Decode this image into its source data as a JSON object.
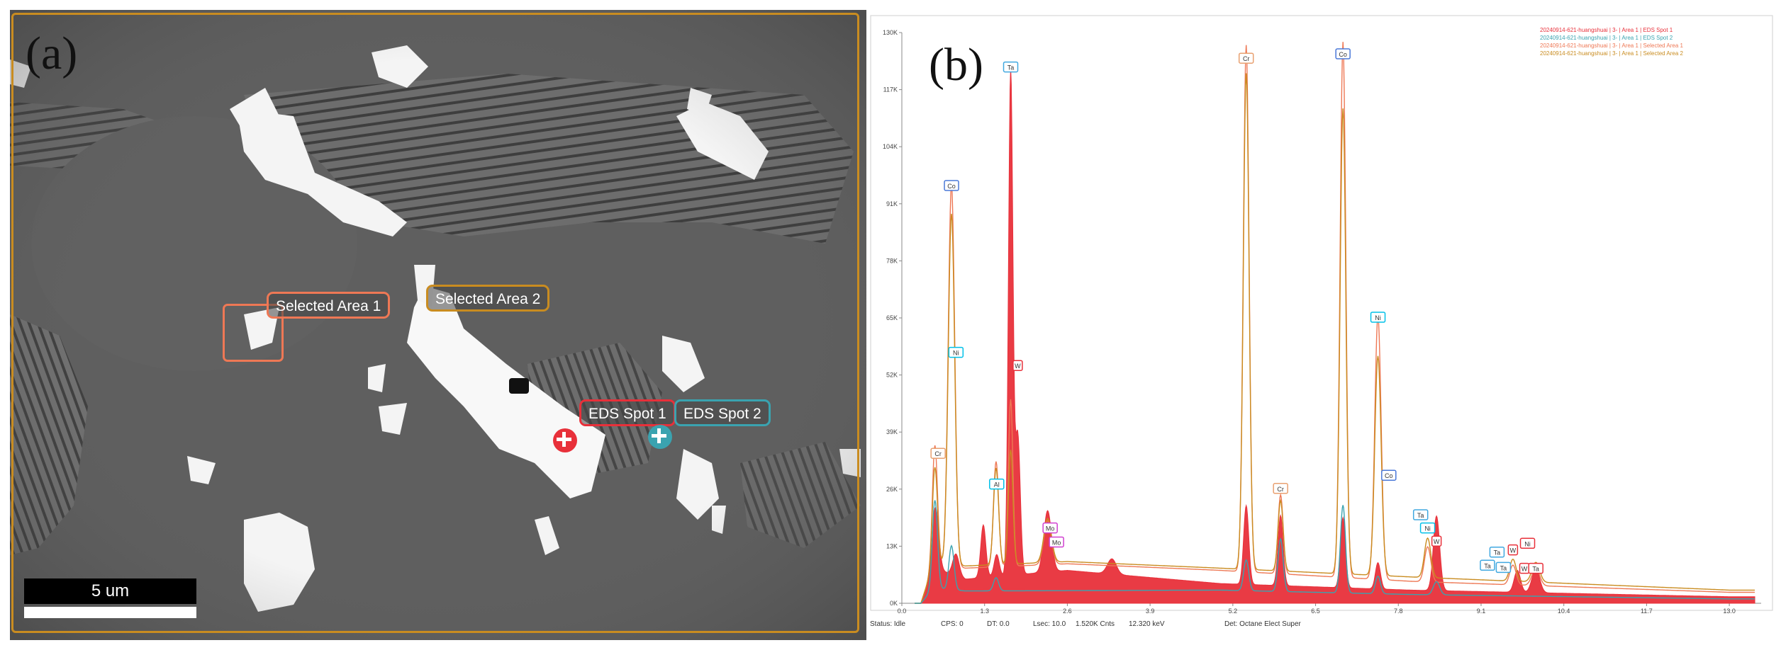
{
  "panel_a": {
    "letter": "(a)",
    "labels": {
      "selected_area_1": "Selected Area 1",
      "selected_area_2": "Selected Area 2",
      "eds_spot_1": "EDS Spot 1",
      "eds_spot_2": "EDS Spot 2"
    },
    "scale_bar": "5 um",
    "colors": {
      "area1": "#ee7855",
      "area2": "#c98c20",
      "spot1": "#e8303a",
      "spot2": "#3aa3b0",
      "frame": "#c98c20"
    }
  },
  "panel_b": {
    "letter": "(b)",
    "legend": [
      {
        "text": "20240914-621-huangshuai | 3- | Area 1 | EDS Spot 1",
        "color": "#e8303a"
      },
      {
        "text": "20240914-621-huangshuai | 3- | Area 1 | EDS Spot 2",
        "color": "#3aa3b0"
      },
      {
        "text": "20240914-621-huangshuai | 3- | Area 1 | Selected Area 1",
        "color": "#ee7855"
      },
      {
        "text": "20240914-621-huangshuai | 3- | Area 1 | Selected Area 2",
        "color": "#c98c20"
      }
    ],
    "status": {
      "status": "Status: Idle",
      "cps": "CPS: 0",
      "dt": "DT: 0.0",
      "lsec": "Lsec: 10.0",
      "cnts": "1.520K Cnts",
      "kev": "12.320 keV",
      "det": "Det: Octane Elect Super"
    }
  },
  "chart_data": {
    "type": "line",
    "xlabel": "",
    "ylabel": "",
    "x_ticks": [
      "0.0",
      "1.3",
      "2.6",
      "3.9",
      "5.2",
      "6.5",
      "7.8",
      "9.1",
      "10.4",
      "11.7",
      "13.0"
    ],
    "y_ticks": [
      "0K",
      "13K",
      "26K",
      "39K",
      "52K",
      "65K",
      "78K",
      "91K",
      "104K",
      "117K",
      "130K"
    ],
    "xlim": [
      0,
      13.5
    ],
    "ylim": [
      0,
      130000
    ],
    "series": [
      {
        "name": "20240914-621-huangshuai | 3- | Area 1 | EDS Spot 1",
        "color": "#e8303a",
        "fill": true,
        "peaks": [
          [
            0.53,
            14000,
            0.05
          ],
          [
            0.85,
            5000,
            0.05
          ],
          [
            1.28,
            12000,
            0.04
          ],
          [
            1.49,
            5000,
            0.04
          ],
          [
            1.71,
            115000,
            0.035
          ],
          [
            1.82,
            32000,
            0.04
          ],
          [
            2.29,
            14000,
            0.06
          ],
          [
            3.3,
            3500,
            0.07
          ],
          [
            5.41,
            18000,
            0.04
          ],
          [
            5.95,
            16000,
            0.04
          ],
          [
            6.93,
            16000,
            0.04
          ],
          [
            7.48,
            6000,
            0.04
          ],
          [
            8.4,
            17000,
            0.05
          ],
          [
            9.67,
            5000,
            0.05
          ],
          [
            9.96,
            5500,
            0.06
          ]
        ],
        "baseline": [
          [
            0.3,
            0
          ],
          [
            0.5,
            8000
          ],
          [
            1.0,
            5500
          ],
          [
            2.6,
            7500
          ],
          [
            5.0,
            4500
          ],
          [
            8.0,
            3000
          ],
          [
            13.0,
            1500
          ]
        ]
      },
      {
        "name": "20240914-621-huangshuai | 3- | Area 1 | EDS Spot 2",
        "color": "#3aa3b0",
        "fill": false,
        "peaks": [
          [
            0.52,
            20000,
            0.04
          ],
          [
            0.78,
            10000,
            0.04
          ],
          [
            1.48,
            3000,
            0.04
          ],
          [
            5.41,
            7000,
            0.04
          ],
          [
            5.95,
            12000,
            0.04
          ],
          [
            6.93,
            20000,
            0.04
          ],
          [
            7.48,
            4000,
            0.04
          ],
          [
            8.4,
            3000,
            0.05
          ]
        ],
        "baseline": [
          [
            0.3,
            0
          ],
          [
            0.5,
            3500
          ],
          [
            1.0,
            2800
          ],
          [
            5.0,
            3000
          ],
          [
            8.0,
            2000
          ],
          [
            13.0,
            1000
          ]
        ]
      },
      {
        "name": "20240914-621-huangshuai | 3- | Area 1 | Selected Area 1",
        "color": "#ee7855",
        "fill": false,
        "peaks": [
          [
            0.52,
            27000,
            0.04
          ],
          [
            0.78,
            87000,
            0.05
          ],
          [
            1.48,
            24000,
            0.04
          ],
          [
            1.71,
            38000,
            0.035
          ],
          [
            2.29,
            10000,
            0.06
          ],
          [
            5.41,
            120000,
            0.045
          ],
          [
            5.95,
            18000,
            0.04
          ],
          [
            6.93,
            122000,
            0.045
          ],
          [
            7.48,
            60000,
            0.05
          ],
          [
            8.26,
            8000,
            0.05
          ],
          [
            9.6,
            4500,
            0.05
          ],
          [
            9.96,
            4000,
            0.06
          ]
        ],
        "baseline": [
          [
            0.3,
            0
          ],
          [
            0.5,
            9000
          ],
          [
            1.0,
            8000
          ],
          [
            2.6,
            9000
          ],
          [
            5.0,
            7500
          ],
          [
            8.0,
            5000
          ],
          [
            13.0,
            2500
          ]
        ]
      },
      {
        "name": "20240914-621-huangshuai | 3- | Area 1 | Selected Area 2",
        "color": "#c98c20",
        "fill": false,
        "peaks": [
          [
            0.52,
            22000,
            0.04
          ],
          [
            0.78,
            80000,
            0.05
          ],
          [
            1.48,
            22000,
            0.04
          ],
          [
            1.71,
            26000,
            0.035
          ],
          [
            2.29,
            10000,
            0.06
          ],
          [
            5.41,
            113000,
            0.045
          ],
          [
            5.95,
            16000,
            0.04
          ],
          [
            6.93,
            106000,
            0.045
          ],
          [
            7.48,
            50000,
            0.05
          ],
          [
            8.26,
            9000,
            0.05
          ],
          [
            9.6,
            5000,
            0.05
          ],
          [
            9.96,
            4500,
            0.06
          ]
        ],
        "baseline": [
          [
            0.3,
            0
          ],
          [
            0.5,
            9000
          ],
          [
            1.0,
            8500
          ],
          [
            2.6,
            9500
          ],
          [
            5.0,
            8000
          ],
          [
            8.0,
            6000
          ],
          [
            13.0,
            3000
          ]
        ]
      }
    ],
    "peak_labels": [
      {
        "text": "Ta",
        "x": 1.71,
        "y": 122000,
        "color": "#40a8e0"
      },
      {
        "text": "Co",
        "x": 0.78,
        "y": 95000,
        "color": "#4a78d8"
      },
      {
        "text": "Ni",
        "x": 0.85,
        "y": 57000,
        "color": "#00c0e8"
      },
      {
        "text": "W",
        "x": 1.82,
        "y": 54000,
        "color": "#e8303a"
      },
      {
        "text": "Cr",
        "x": 0.57,
        "y": 34000,
        "color": "#e8a070"
      },
      {
        "text": "Al",
        "x": 1.49,
        "y": 27000,
        "color": "#00c0e8"
      },
      {
        "text": "Mo",
        "x": 2.33,
        "y": 17000,
        "color": "#d040d0"
      },
      {
        "text": "Mo",
        "x": 2.43,
        "y": 13800,
        "color": "#d040d0"
      },
      {
        "text": "Cr",
        "x": 5.41,
        "y": 124000,
        "color": "#e8a070"
      },
      {
        "text": "Cr",
        "x": 5.95,
        "y": 26000,
        "color": "#e8a070"
      },
      {
        "text": "Co",
        "x": 6.93,
        "y": 125000,
        "color": "#4a78d8"
      },
      {
        "text": "Ni",
        "x": 7.48,
        "y": 65000,
        "color": "#00c0e8"
      },
      {
        "text": "Co",
        "x": 7.65,
        "y": 29000,
        "color": "#4a78d8"
      },
      {
        "text": "Ta",
        "x": 8.15,
        "y": 20000,
        "color": "#40a8e0"
      },
      {
        "text": "Ni",
        "x": 8.26,
        "y": 17000,
        "color": "#00c0e8"
      },
      {
        "text": "W",
        "x": 8.4,
        "y": 14000,
        "color": "#e8303a"
      },
      {
        "text": "Ta",
        "x": 9.35,
        "y": 11500,
        "color": "#40a8e0"
      },
      {
        "text": "W",
        "x": 9.6,
        "y": 12000,
        "color": "#e8303a"
      },
      {
        "text": "Ni",
        "x": 9.83,
        "y": 13500,
        "color": "#e8303a"
      },
      {
        "text": "Ta",
        "x": 9.2,
        "y": 8500,
        "color": "#40a8e0"
      },
      {
        "text": "Ta",
        "x": 9.45,
        "y": 8000,
        "color": "#40a8e0"
      },
      {
        "text": "W",
        "x": 9.78,
        "y": 7800,
        "color": "#e8303a"
      },
      {
        "text": "Ta",
        "x": 9.96,
        "y": 7800,
        "color": "#e8303a"
      }
    ]
  }
}
